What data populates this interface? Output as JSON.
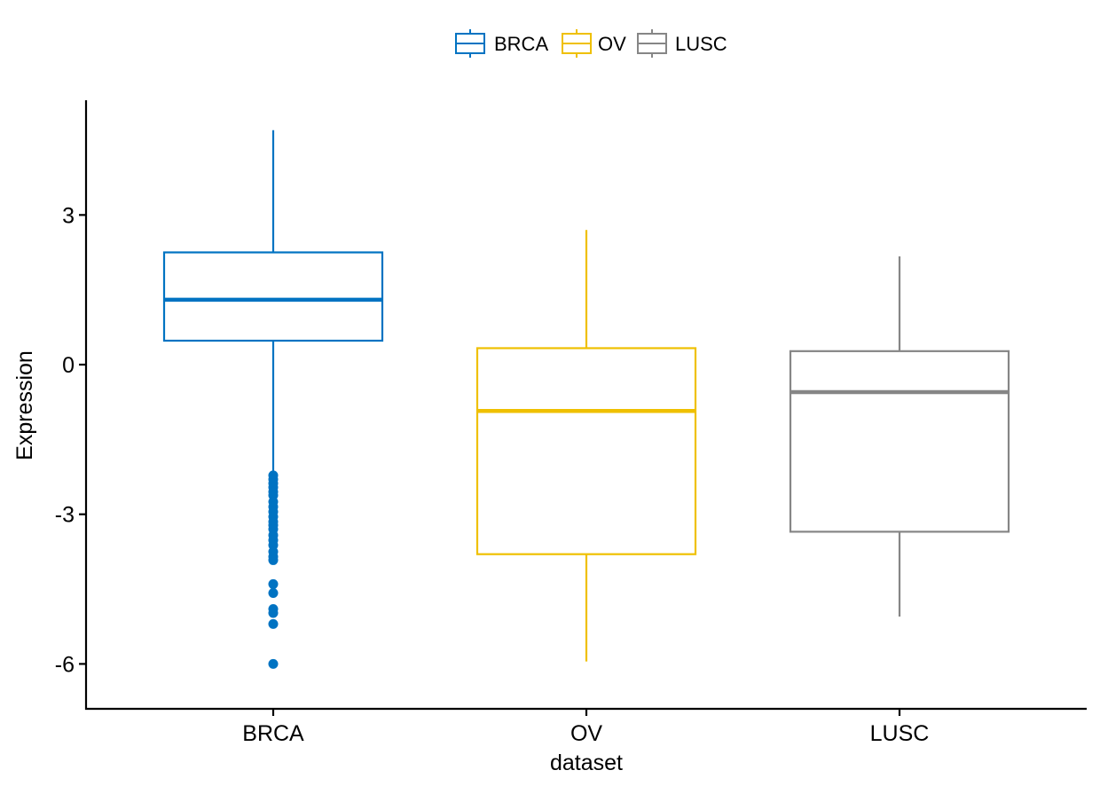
{
  "chart_data": {
    "type": "box",
    "xlabel": "dataset",
    "ylabel": "Expression",
    "ylim": [
      -6.9,
      5.3
    ],
    "yticks": [
      3,
      0,
      -3,
      -6
    ],
    "ytick_labels": [
      "3",
      "0",
      "-3",
      "-6"
    ],
    "legend_position": "top",
    "grid": false,
    "categories": [
      "BRCA",
      "OV",
      "LUSC"
    ],
    "series": [
      {
        "name": "BRCA",
        "color": "#0073C2",
        "whisker_low": -2.2,
        "q1": 0.48,
        "median": 1.3,
        "q3": 2.25,
        "whisker_high": 4.7,
        "outliers": [
          -2.22,
          -2.3,
          -2.38,
          -2.46,
          -2.55,
          -2.62,
          -2.75,
          -2.85,
          -2.95,
          -3.05,
          -3.15,
          -3.22,
          -3.3,
          -3.42,
          -3.52,
          -3.62,
          -3.75,
          -3.85,
          -3.92,
          -4.4,
          -4.58,
          -4.9,
          -4.98,
          -5.2,
          -6.0
        ]
      },
      {
        "name": "OV",
        "color": "#EFC000",
        "whisker_low": -5.95,
        "q1": -3.8,
        "median": -0.93,
        "q3": 0.33,
        "whisker_high": 2.7,
        "outliers": []
      },
      {
        "name": "LUSC",
        "color": "#868686",
        "whisker_low": -5.05,
        "q1": -3.35,
        "median": -0.55,
        "q3": 0.27,
        "whisker_high": 2.17,
        "outliers": []
      }
    ]
  }
}
